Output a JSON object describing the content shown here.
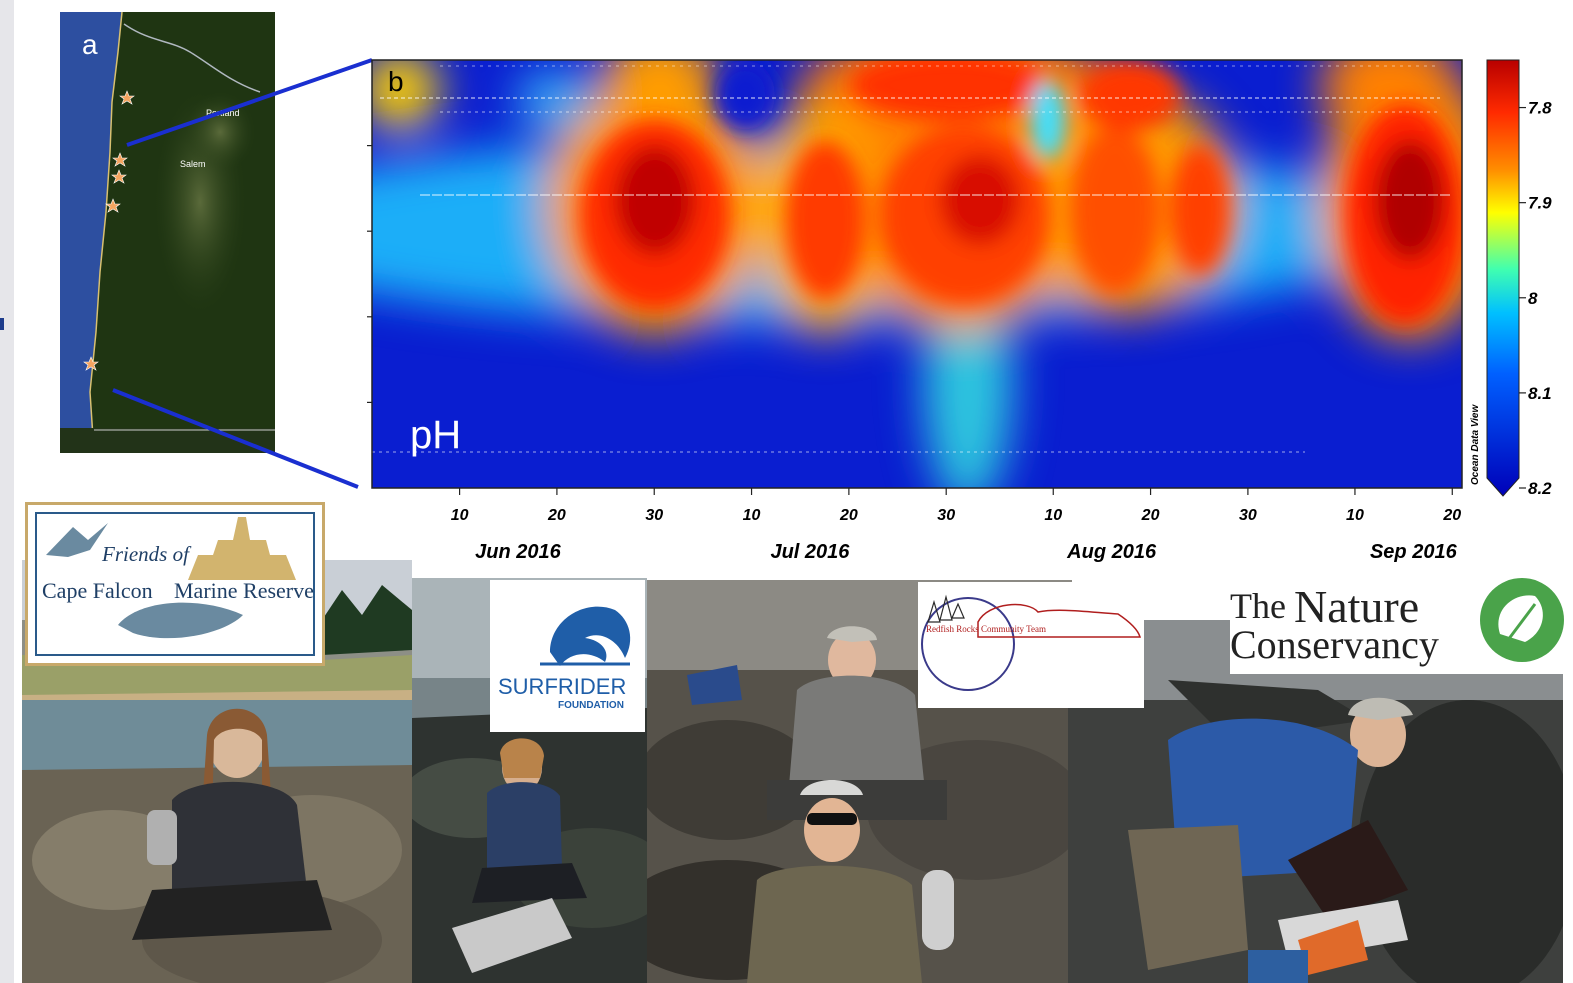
{
  "panel_a": {
    "letter": "a",
    "cities": [
      "Portland",
      "Salem"
    ],
    "site_count": 5
  },
  "chart_data": {
    "type": "heatmap",
    "panel_letter": "b",
    "variable_label": "pH",
    "watermark": "Ocean Data View",
    "x_tick_labels": [
      "10",
      "20",
      "30",
      "10",
      "20",
      "30",
      "10",
      "20",
      "30",
      "10",
      "20"
    ],
    "month_labels": [
      "Jun 2016",
      "Jul 2016",
      "Aug 2016",
      "Sep 2016"
    ],
    "colorbar": {
      "ticks": [
        "7.8",
        "7.9",
        "8",
        "8.1",
        "8.2"
      ],
      "range": [
        7.75,
        8.2
      ],
      "reversed": true,
      "colormap": [
        "#0000c8",
        "#0064ff",
        "#00c8ff",
        "#40ffc0",
        "#ffff00",
        "#ffa000",
        "#ff3000",
        "#c00000",
        "#780000"
      ]
    },
    "low_ph_events": [
      {
        "center": "Jun 30 2016",
        "ph": 7.75
      },
      {
        "center": "Jul 19 2016",
        "ph": 7.8
      },
      {
        "center": "Aug 1 2016",
        "ph": 7.79
      },
      {
        "center": "Aug 20 2016",
        "ph": 7.8
      },
      {
        "center": "Sep 16 2016",
        "ph": 7.75
      }
    ]
  },
  "logos": {
    "friends": {
      "line1": "Friends of",
      "line2a": "Cape Falcon",
      "line2b": "Marine Reserve"
    },
    "surfrider": {
      "name": "SURFRIDER",
      "sub": "FOUNDATION"
    },
    "redfish": {
      "name": "Redfish Rocks Community Team"
    },
    "tnc": {
      "line1a": "The",
      "line1b": "Nature",
      "line2": "Conservancy"
    }
  }
}
